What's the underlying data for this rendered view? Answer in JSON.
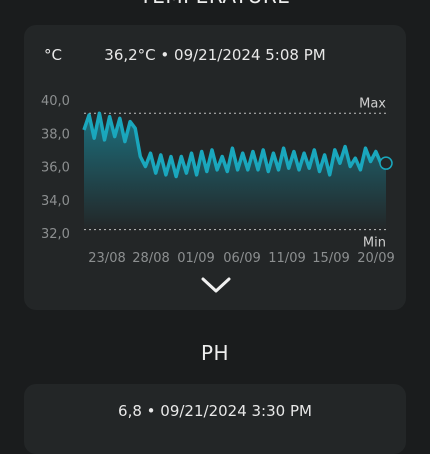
{
  "temperature": {
    "title": "TEMPERATURE",
    "unit": "°C",
    "reading": "36,2°C • 09/21/2024 5:08 PM",
    "max_label": "Max",
    "min_label": "Min",
    "y_ticks": [
      "40,0",
      "38,0",
      "36,0",
      "34,0",
      "32,0"
    ],
    "x_ticks": [
      "23/08",
      "28/08",
      "01/09",
      "06/09",
      "11/09",
      "15/09",
      "20/09"
    ]
  },
  "ph": {
    "title": "PH",
    "reading": "6,8 •  09/21/2024 3:30 PM"
  },
  "colors": {
    "line": "#1aa7bd",
    "fill_top": "#1b7d8d",
    "fill_bottom": "#232627",
    "threshold": "#bfbfbf"
  },
  "icons": {
    "expand": "chevron-down-icon"
  },
  "chart_data": {
    "type": "area",
    "title": "",
    "xlabel": "",
    "ylabel": "°C",
    "ylim": [
      32,
      40
    ],
    "thresholds": {
      "max": 39.2,
      "min": 32.2
    },
    "x_ticks": [
      "23/08",
      "28/08",
      "01/09",
      "06/09",
      "11/09",
      "15/09",
      "20/09"
    ],
    "series": [
      {
        "values": [
          38.2,
          39.1,
          37.7,
          39.2,
          37.6,
          39.0,
          37.8,
          38.9,
          37.5,
          38.7,
          38.3,
          36.6,
          36.0,
          36.8,
          35.6,
          36.7,
          35.5,
          36.6,
          35.4,
          36.6,
          35.6,
          36.8,
          35.5,
          36.9,
          35.7,
          37.0,
          35.8,
          36.6,
          35.7,
          37.1,
          35.8,
          36.8,
          35.8,
          36.9,
          35.8,
          37.0,
          35.7,
          36.8,
          35.8,
          37.1,
          35.9,
          36.9,
          35.8,
          36.8,
          35.9,
          37.0,
          35.7,
          36.7,
          35.5,
          37.0,
          36.2,
          37.2,
          36.0,
          36.5,
          35.8,
          37.1,
          36.3,
          36.9,
          36.2,
          36.2
        ]
      }
    ]
  }
}
